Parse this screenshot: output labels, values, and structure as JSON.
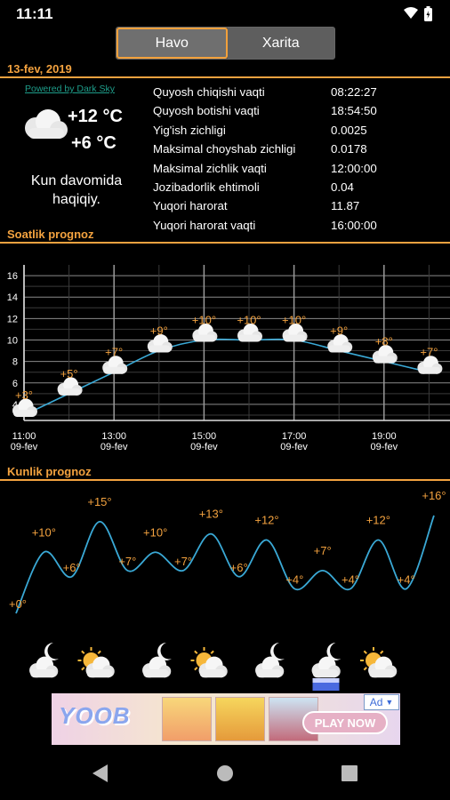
{
  "status": {
    "time": "11:11"
  },
  "tabs": [
    {
      "label": "Havo"
    },
    {
      "label": "Xarita"
    }
  ],
  "today": {
    "date": "13-fev, 2019",
    "powered_by": "Powered by Dark Sky",
    "temp_high": "+12 °C",
    "temp_low": "+6 °C",
    "summary": "Kun davomida haqiqiy.",
    "icon": "cloud-icon",
    "details": [
      {
        "label": "Quyosh chiqishi vaqti",
        "value": "08:22:27"
      },
      {
        "label": "Quyosh botishi vaqti",
        "value": "18:54:50"
      },
      {
        "label": "Yig'ish zichligi",
        "value": "0.0025"
      },
      {
        "label": "Maksimal choyshab zichligi",
        "value": "0.0178"
      },
      {
        "label": "Maksimal zichlik vaqti",
        "value": "12:00:00"
      },
      {
        "label": "Jozibadorlik ehtimoli",
        "value": "0.04"
      },
      {
        "label": "Yuqori harorat",
        "value": "11.87"
      },
      {
        "label": "Yuqori harorat vaqti",
        "value": "16:00:00"
      }
    ]
  },
  "hourly": {
    "title": "Soatlik prognoz",
    "date_label": "09-fev"
  },
  "daily": {
    "title": "Kunlik prognoz",
    "icons": [
      "moon-cloud-icon",
      "sun-cloud-icon",
      "moon-cloud-icon",
      "sun-cloud-icon",
      "moon-cloud-icon",
      "moon-rain-cloud-icon",
      "sun-cloud-icon"
    ]
  },
  "ad": {
    "logo_text": "YOOB",
    "play_label": "PLAY NOW",
    "tag": "Ad"
  },
  "colors": {
    "accent": "#f3a23f",
    "line": "#3aa9d6",
    "powered": "#1e9d8a"
  },
  "chart_data": [
    {
      "type": "line",
      "title": "Soatlik prognoz",
      "x": [
        "11:00",
        "12:00",
        "13:00",
        "14:00",
        "15:00",
        "16:00",
        "17:00",
        "18:00",
        "19:00",
        "20:00"
      ],
      "x_ticks": [
        "11:00",
        "13:00",
        "15:00",
        "17:00",
        "19:00"
      ],
      "x_tick_sublabel": "09-fev",
      "values": [
        3,
        5,
        7,
        9,
        10,
        10,
        10,
        9,
        8,
        7
      ],
      "point_labels": [
        "+3°",
        "+5°",
        "+7°",
        "+9°",
        "+10°",
        "+10°",
        "+10°",
        "+9°",
        "+8°",
        "+7°"
      ],
      "yticks": [
        4,
        6,
        8,
        10,
        12,
        14,
        16
      ],
      "ylim": [
        2.5,
        17
      ],
      "grid": true
    },
    {
      "type": "line",
      "title": "Kunlik prognoz",
      "values": [
        0,
        10,
        6,
        15,
        7,
        10,
        7,
        13,
        6,
        12,
        4,
        7,
        4,
        12,
        4,
        16
      ],
      "point_labels": [
        "+0°",
        "+10°",
        "+6°",
        "+15°",
        "+7°",
        "+10°",
        "+7°",
        "+13°",
        "+6°",
        "+12°",
        "+4°",
        "+7°",
        "+4°",
        "+12°",
        "+4°",
        "+16°"
      ],
      "grid": false
    }
  ]
}
